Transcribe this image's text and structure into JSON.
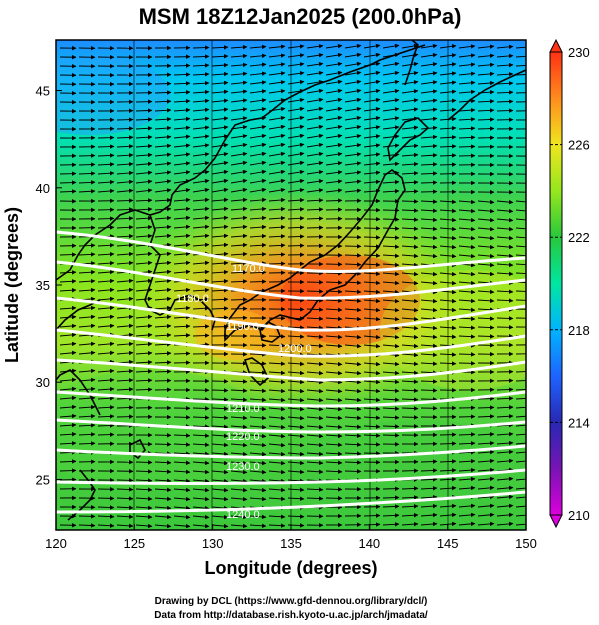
{
  "title": "MSM 18Z12Jan2025 (200.0hPa)",
  "x_axis": {
    "label": "Longitude (degrees)",
    "ticks": [
      "120",
      "125",
      "130",
      "135",
      "140",
      "145",
      "150"
    ],
    "range": [
      120,
      150
    ]
  },
  "y_axis": {
    "label": "Latitude  (degrees)",
    "ticks": [
      "25",
      "30",
      "35",
      "40",
      "45"
    ],
    "range": [
      22.4,
      47.6
    ]
  },
  "colorbar": {
    "ticks": [
      "210",
      "214",
      "218",
      "222",
      "226",
      "230"
    ],
    "range": [
      210,
      230
    ],
    "colors": [
      "#c800c8",
      "#2828b4",
      "#1e78ff",
      "#00c8ff",
      "#00e6a0",
      "#28c83c",
      "#96e61e",
      "#f0f01e",
      "#ffa01e",
      "#ff3c14"
    ]
  },
  "contour_labels": [
    "1170.0",
    "1180.0",
    "1190.0",
    "1200.0",
    "1210.0",
    "1220.0",
    "1230.0",
    "1240.0"
  ],
  "credits": {
    "line1": "Drawing by DCL (https://www.gfd-dennou.org/library/dcl/)",
    "line2": "Data from http://database.rish.kyoto-u.ac.jp/arch/jmadata/"
  }
}
